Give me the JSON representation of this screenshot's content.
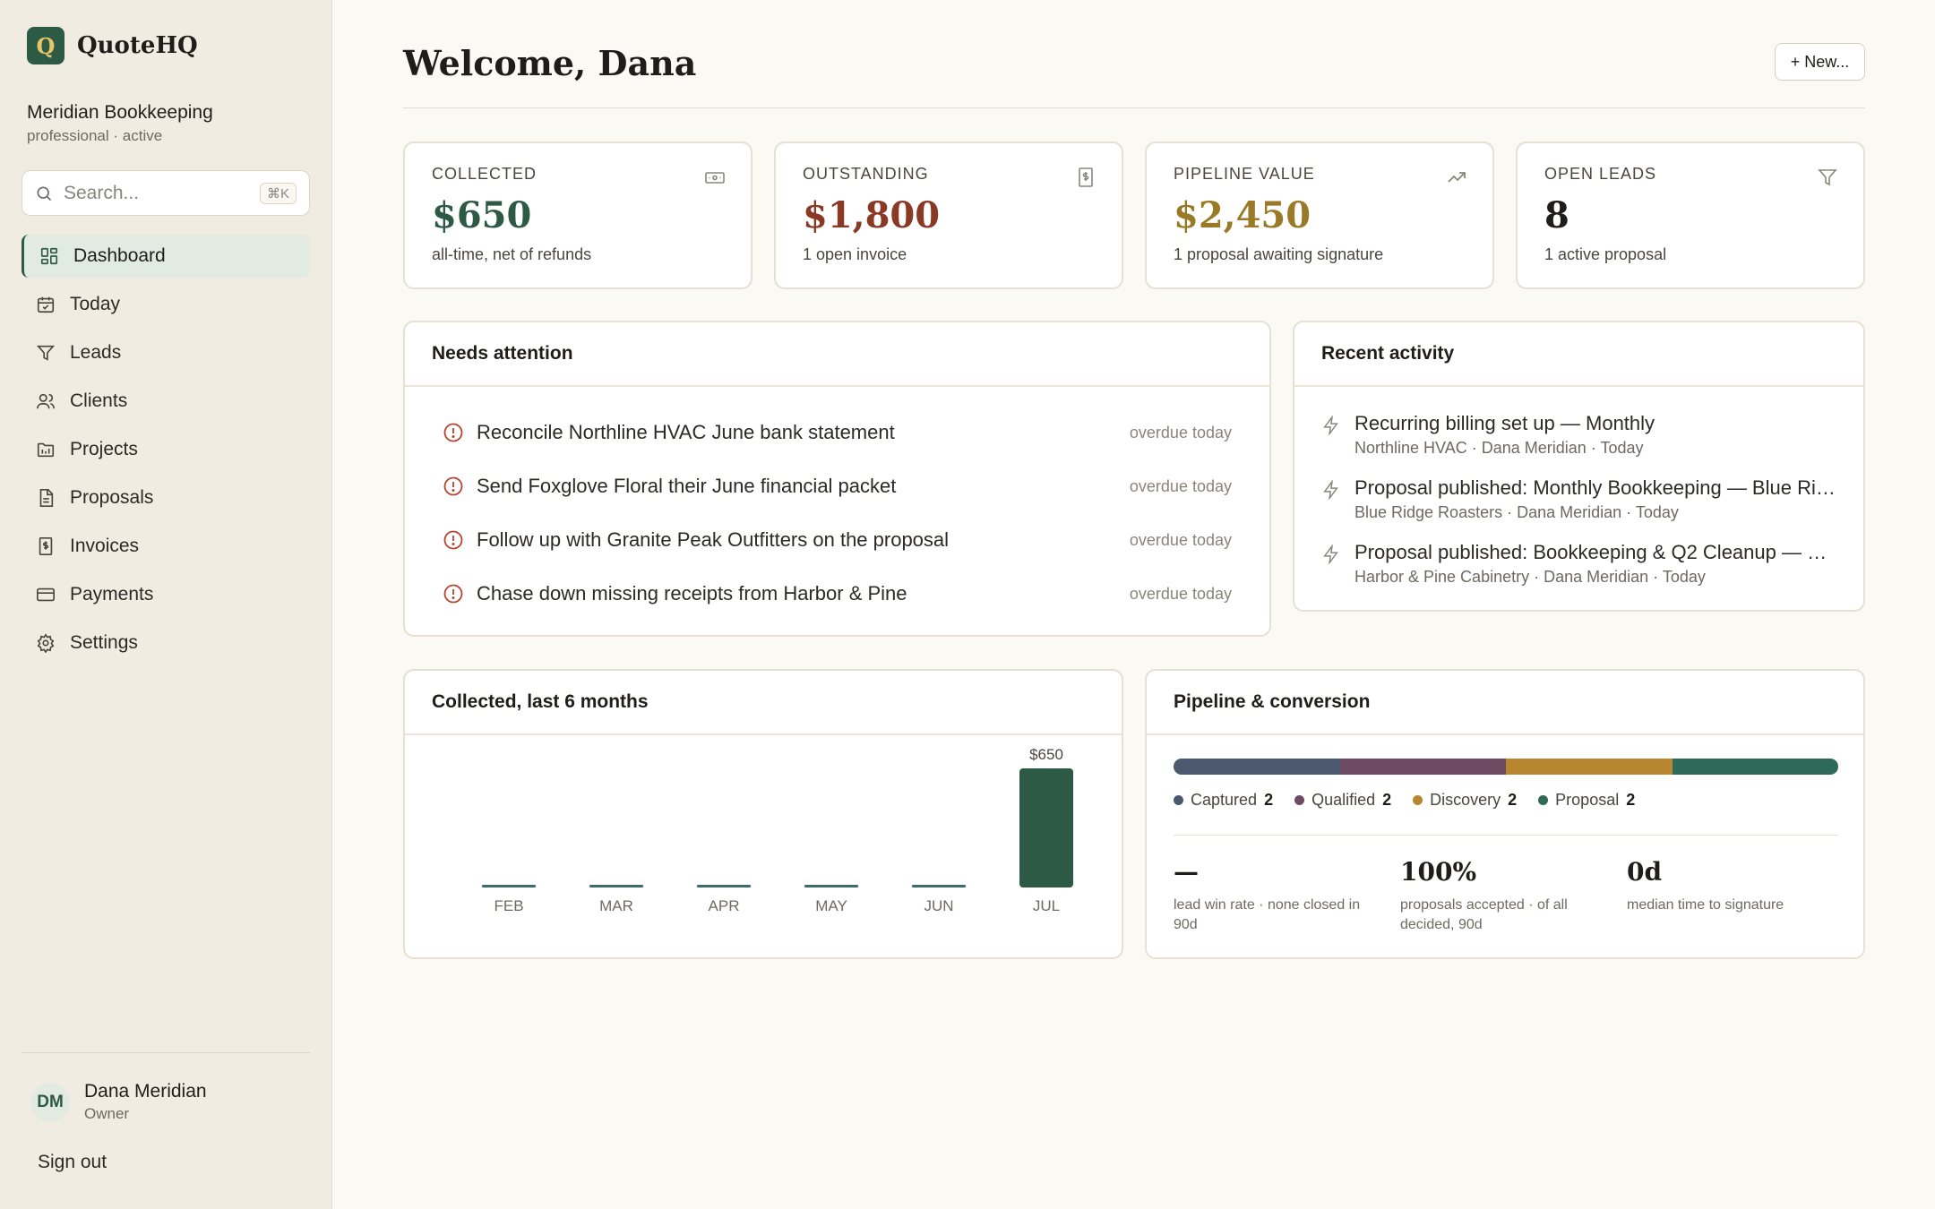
{
  "app": {
    "name": "QuoteHQ",
    "logo_letter": "Q",
    "org_name": "Meridian Bookkeeping",
    "org_sub": "professional · active"
  },
  "search": {
    "placeholder": "Search...",
    "shortcut": "⌘K"
  },
  "sidebar": {
    "items": [
      {
        "label": "Dashboard",
        "icon": "grid-icon",
        "active": true
      },
      {
        "label": "Today",
        "icon": "calendar-icon"
      },
      {
        "label": "Leads",
        "icon": "filter-icon"
      },
      {
        "label": "Clients",
        "icon": "users-icon"
      },
      {
        "label": "Projects",
        "icon": "folder-icon"
      },
      {
        "label": "Proposals",
        "icon": "document-icon"
      },
      {
        "label": "Invoices",
        "icon": "invoice-icon"
      },
      {
        "label": "Payments",
        "icon": "credit-card-icon"
      },
      {
        "label": "Settings",
        "icon": "gear-icon"
      }
    ]
  },
  "user": {
    "initials": "DM",
    "name": "Dana Meridian",
    "role": "Owner",
    "signout_label": "Sign out"
  },
  "header": {
    "title": "Welcome, Dana",
    "new_button": "+ New..."
  },
  "colors": {
    "brand": "#2d5a45",
    "collected": "#2d5a45",
    "outstanding": "#8a3a24",
    "pipeline": "#9a7a26",
    "leads": "#1f1d1a",
    "captured": "#4a5870",
    "qualified": "#6e4a62",
    "discovery": "#b8862f",
    "proposal": "#2d6a58",
    "alert": "#b8432f"
  },
  "stats": [
    {
      "label": "COLLECTED",
      "value": "$650",
      "sub": "all-time, net of refunds",
      "icon": "cash-icon"
    },
    {
      "label": "OUTSTANDING",
      "value": "$1,800",
      "sub": "1 open invoice",
      "icon": "invoice-icon"
    },
    {
      "label": "PIPELINE VALUE",
      "value": "$2,450",
      "sub": "1 proposal awaiting signature",
      "icon": "trend-up-icon"
    },
    {
      "label": "OPEN LEADS",
      "value": "8",
      "sub": "1 active proposal",
      "icon": "filter-icon"
    }
  ],
  "attention": {
    "title": "Needs attention",
    "items": [
      {
        "text": "Reconcile Northline HVAC June bank statement",
        "due": "overdue today"
      },
      {
        "text": "Send Foxglove Floral their June financial packet",
        "due": "overdue today"
      },
      {
        "text": "Follow up with Granite Peak Outfitters on the proposal",
        "due": "overdue today"
      },
      {
        "text": "Chase down missing receipts from Harbor & Pine",
        "due": "overdue today"
      }
    ]
  },
  "activity": {
    "title": "Recent activity",
    "items": [
      {
        "title": "Recurring billing set up — Monthly",
        "meta": "Northline HVAC · Dana Meridian · Today"
      },
      {
        "title": "Proposal published: Monthly Bookkeeping — Blue Rid...",
        "meta": "Blue Ridge Roasters · Dana Meridian · Today"
      },
      {
        "title": "Proposal published: Bookkeeping & Q2 Cleanup — Ha...",
        "meta": "Harbor & Pine Cabinetry · Dana Meridian · Today"
      }
    ]
  },
  "chart_data": {
    "type": "bar",
    "title": "Collected, last 6 months",
    "categories": [
      "FEB",
      "MAR",
      "APR",
      "MAY",
      "JUN",
      "JUL"
    ],
    "values": [
      0,
      0,
      0,
      0,
      0,
      650
    ],
    "data_labels": [
      "",
      "",
      "",
      "",
      "",
      "$650"
    ],
    "ylim": [
      0,
      650
    ],
    "grid": false
  },
  "pipeline": {
    "title": "Pipeline & conversion",
    "stages": [
      {
        "name": "Captured",
        "count": "2",
        "value": 2
      },
      {
        "name": "Qualified",
        "count": "2",
        "value": 2
      },
      {
        "name": "Discovery",
        "count": "2",
        "value": 2
      },
      {
        "name": "Proposal",
        "count": "2",
        "value": 2
      }
    ],
    "metrics": [
      {
        "value": "—",
        "label": "lead win rate · none closed in 90d"
      },
      {
        "value": "100%",
        "label": "proposals accepted · of all decided, 90d"
      },
      {
        "value": "0d",
        "label": "median time to signature"
      }
    ]
  }
}
